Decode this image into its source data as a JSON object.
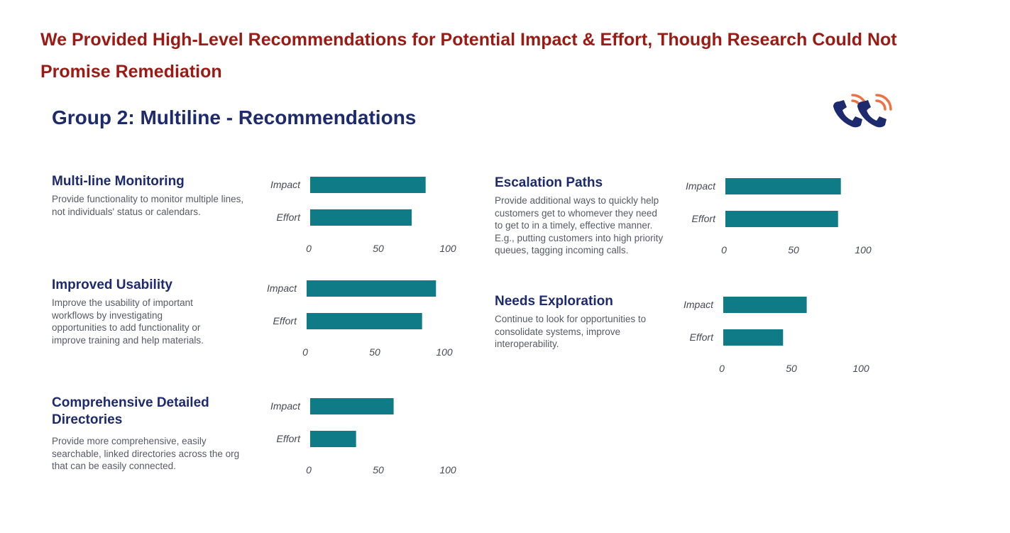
{
  "slide": {
    "title": "We Provided High-Level Recommendations for Potential Impact & Effort, Though Research Could Not Promise Remediation",
    "subtitle": "Group 2: Multiline - Recommendations"
  },
  "icons": {
    "phone": "phone-ringing-icon"
  },
  "colors": {
    "bar": "#0e7b87",
    "title": "#9c1a14",
    "heading": "#1d2a6e",
    "body": "#555b66"
  },
  "recommendations": [
    {
      "title": "Multi-line Monitoring",
      "body": "Provide functionality to monitor multiple lines, not individuals' status or calendars."
    },
    {
      "title": "Improved Usability",
      "body": "Improve the usability of important workflows by investigating opportunities to add functionality or improve training and help materials."
    },
    {
      "title": "Comprehensive Detailed Directories",
      "body": "Provide more comprehensive, easily searchable, linked directories across the org that can be easily connected."
    },
    {
      "title": "Escalation Paths",
      "body": "Provide additional ways to quickly help customers get to whomever they need to get to in a timely, effective manner. E.g., putting customers into high priority queues, tagging incoming calls."
    },
    {
      "title": "Needs Exploration",
      "body": "Continue to look for opportunities to consolidate systems, improve interoperability."
    }
  ],
  "chart_data": [
    {
      "type": "bar",
      "orientation": "horizontal",
      "title": "Multi-line Monitoring",
      "categories": [
        "Impact",
        "Effort"
      ],
      "values": [
        83,
        73
      ],
      "xlim": [
        0,
        100
      ],
      "xticks": [
        0,
        50,
        100
      ]
    },
    {
      "type": "bar",
      "orientation": "horizontal",
      "title": "Improved Usability",
      "categories": [
        "Impact",
        "Effort"
      ],
      "values": [
        93,
        83
      ],
      "xlim": [
        0,
        100
      ],
      "xticks": [
        0,
        50,
        100
      ]
    },
    {
      "type": "bar",
      "orientation": "horizontal",
      "title": "Comprehensive Detailed Directories",
      "categories": [
        "Impact",
        "Effort"
      ],
      "values": [
        60,
        33
      ],
      "xlim": [
        0,
        100
      ],
      "xticks": [
        0,
        50,
        100
      ]
    },
    {
      "type": "bar",
      "orientation": "horizontal",
      "title": "Escalation Paths",
      "categories": [
        "Impact",
        "Effort"
      ],
      "values": [
        83,
        81
      ],
      "xlim": [
        0,
        100
      ],
      "xticks": [
        0,
        50,
        100
      ]
    },
    {
      "type": "bar",
      "orientation": "horizontal",
      "title": "Needs Exploration",
      "categories": [
        "Impact",
        "Effort"
      ],
      "values": [
        60,
        43
      ],
      "xlim": [
        0,
        100
      ],
      "xticks": [
        0,
        50,
        100
      ]
    }
  ]
}
